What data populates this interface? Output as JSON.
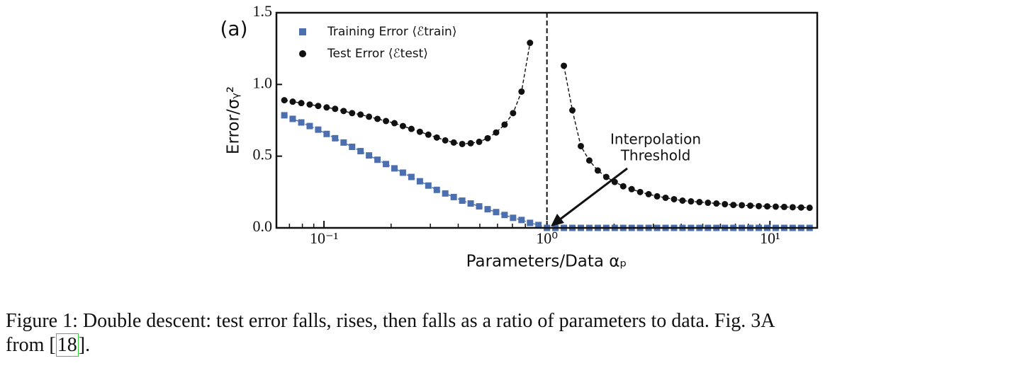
{
  "chart_data": {
    "type": "line",
    "panel_label": "(a)",
    "xlabel": "Parameters/Data αₚ",
    "ylabel": "Error/σᵧ²",
    "log_x": true,
    "xlim": [
      0.0612,
      16.3
    ],
    "ylim": [
      0,
      1.5
    ],
    "xticks": [
      {
        "value": 0.1,
        "label": "10⁻¹"
      },
      {
        "value": 1,
        "label": "10⁰"
      },
      {
        "value": 10,
        "label": "10¹"
      }
    ],
    "xminorticks": [
      0.07,
      0.08,
      0.09,
      0.2,
      0.3,
      0.4,
      0.5,
      0.6,
      0.7,
      0.8,
      0.9,
      2,
      3,
      4,
      5,
      6,
      7,
      8,
      9
    ],
    "yticks": [
      {
        "value": 0,
        "label": "0.0"
      },
      {
        "value": 0.5,
        "label": "0.5"
      },
      {
        "value": 1,
        "label": "1.0"
      },
      {
        "value": 1.5,
        "label": "1.5"
      }
    ],
    "legend": "upper left",
    "vline": 1,
    "annotation": [
      "Interpolation",
      "Threshold"
    ],
    "x": [
      0.0664,
      0.0724,
      0.0791,
      0.0863,
      0.0942,
      0.1028,
      0.1122,
      0.1225,
      0.1337,
      0.1459,
      0.1592,
      0.1738,
      0.1897,
      0.207,
      0.2259,
      0.2466,
      0.2692,
      0.2938,
      0.3206,
      0.3499,
      0.3819,
      0.4169,
      0.455,
      0.4966,
      0.542,
      0.5916,
      0.6457,
      0.7047,
      0.7691,
      0.8395,
      0.9162,
      1,
      1.0914,
      1.1912,
      1.3002,
      1.4191,
      1.5488,
      1.6904,
      1.845,
      2.0137,
      2.1979,
      2.3988,
      2.6182,
      2.8577,
      3.1191,
      3.4041,
      3.7154,
      4.0551,
      4.4259,
      4.8306,
      5.2723,
      5.7544,
      6.2806,
      6.8549,
      7.4817,
      8.1658,
      8.9125,
      9.7275,
      10.617,
      11.588,
      12.647,
      13.804,
      15.066
    ],
    "series": [
      {
        "name": "Training Error ⟨ℰtrain⟩",
        "color": "#4c6faf",
        "marker": "square",
        "values": [
          0.785,
          0.76,
          0.735,
          0.71,
          0.685,
          0.655,
          0.625,
          0.595,
          0.565,
          0.535,
          0.505,
          0.475,
          0.445,
          0.415,
          0.385,
          0.355,
          0.325,
          0.295,
          0.265,
          0.24,
          0.215,
          0.19,
          0.17,
          0.15,
          0.13,
          0.11,
          0.09,
          0.07,
          0.055,
          0.035,
          0.02,
          0,
          0,
          0,
          0,
          0,
          0,
          0,
          0,
          0,
          0,
          0,
          0,
          0,
          0,
          0,
          0,
          0,
          0,
          0,
          0,
          0,
          0,
          0,
          0,
          0,
          0,
          0,
          0,
          0,
          0,
          0,
          0
        ]
      },
      {
        "name": "Test Error ⟨ℰtest⟩",
        "color": "#111111",
        "marker": "circle",
        "values": [
          0.89,
          0.88,
          0.87,
          0.86,
          0.85,
          0.84,
          0.83,
          0.815,
          0.8,
          0.79,
          0.775,
          0.76,
          0.745,
          0.73,
          0.71,
          0.69,
          0.67,
          0.65,
          0.63,
          0.61,
          0.595,
          0.585,
          0.59,
          0.6,
          0.625,
          0.665,
          0.72,
          0.8,
          0.95,
          1.29,
          null,
          null,
          null,
          1.13,
          0.82,
          0.57,
          0.47,
          0.4,
          0.355,
          0.32,
          0.29,
          0.27,
          0.25,
          0.235,
          0.22,
          0.21,
          0.2,
          0.19,
          0.185,
          0.18,
          0.175,
          0.17,
          0.165,
          0.16,
          0.158,
          0.155,
          0.152,
          0.15,
          0.148,
          0.146,
          0.144,
          0.142,
          0.14
        ]
      }
    ]
  },
  "caption": {
    "line1": "Figure 1: Double descent: test error falls, rises, then falls as a ratio of parameters to data. Fig. 3A",
    "line2_pre": "from [",
    "ref": "18",
    "line2_post": "]."
  }
}
